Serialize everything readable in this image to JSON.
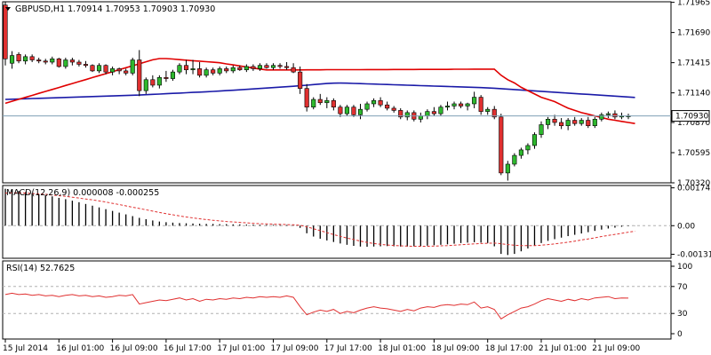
{
  "chart_data": [
    {
      "type": "candlestick",
      "title": "GBPUSD,H1  1.70914  1.70953  1.70903  1.70930",
      "symbol": "GBPUSD",
      "timeframe": "H1",
      "ohlc_header": {
        "open": "1.70914",
        "high": "1.70953",
        "low": "1.70903",
        "close": "1.70930"
      },
      "y_ticks": [
        "1.71965",
        "1.71690",
        "1.71415",
        "1.71140",
        "1.70870",
        "1.70595",
        "1.70320"
      ],
      "ylim": [
        1.7032,
        1.7197
      ],
      "current_price": 1.7093,
      "current_price_label": "1.70930",
      "colors": {
        "up": "#2eb82e",
        "down": "#e03030",
        "wick": "#000000",
        "ma_fast": "#e00000",
        "ma_slow": "#1a1aa8",
        "price_line": "#7f9fb5"
      },
      "candles": [
        [
          1.7194,
          1.7197,
          1.7139,
          1.7145
        ],
        [
          1.7141,
          1.7152,
          1.7136,
          1.7148
        ],
        [
          1.7149,
          1.7151,
          1.7141,
          1.7143
        ],
        [
          1.7143,
          1.7149,
          1.714,
          1.7147
        ],
        [
          1.7147,
          1.7149,
          1.7142,
          1.7144
        ],
        [
          1.7144,
          1.7146,
          1.7141,
          1.7143
        ],
        [
          1.7143,
          1.7145,
          1.714,
          1.7142
        ],
        [
          1.7142,
          1.7147,
          1.714,
          1.7145
        ],
        [
          1.7145,
          1.7146,
          1.7137,
          1.7138
        ],
        [
          1.7138,
          1.7146,
          1.7136,
          1.7144
        ],
        [
          1.7144,
          1.7146,
          1.7139,
          1.7142
        ],
        [
          1.7142,
          1.7144,
          1.7138,
          1.714
        ],
        [
          1.714,
          1.7143,
          1.7137,
          1.7139
        ],
        [
          1.7139,
          1.714,
          1.7133,
          1.7134
        ],
        [
          1.7134,
          1.7141,
          1.7132,
          1.7139
        ],
        [
          1.7139,
          1.714,
          1.7131,
          1.7133
        ],
        [
          1.7133,
          1.7138,
          1.713,
          1.7136
        ],
        [
          1.7136,
          1.7137,
          1.7131,
          1.7134
        ],
        [
          1.7134,
          1.7136,
          1.713,
          1.7132
        ],
        [
          1.7132,
          1.7146,
          1.713,
          1.7144
        ],
        [
          1.7144,
          1.7153,
          1.7111,
          1.7116
        ],
        [
          1.7116,
          1.7128,
          1.7113,
          1.7126
        ],
        [
          1.7126,
          1.713,
          1.7119,
          1.7121
        ],
        [
          1.7121,
          1.713,
          1.7118,
          1.7128
        ],
        [
          1.7128,
          1.7134,
          1.7124,
          1.7127
        ],
        [
          1.7127,
          1.7135,
          1.7125,
          1.7133
        ],
        [
          1.7133,
          1.7141,
          1.7131,
          1.7139
        ],
        [
          1.7139,
          1.7144,
          1.7131,
          1.7135
        ],
        [
          1.7135,
          1.7144,
          1.7131,
          1.7136
        ],
        [
          1.7136,
          1.7142,
          1.7128,
          1.713
        ],
        [
          1.713,
          1.7137,
          1.7128,
          1.7135
        ],
        [
          1.7135,
          1.7137,
          1.713,
          1.7132
        ],
        [
          1.7132,
          1.7138,
          1.713,
          1.7136
        ],
        [
          1.7136,
          1.7138,
          1.7132,
          1.7134
        ],
        [
          1.7134,
          1.7139,
          1.7132,
          1.7137
        ],
        [
          1.7137,
          1.7139,
          1.7134,
          1.7135
        ],
        [
          1.7135,
          1.714,
          1.7133,
          1.7138
        ],
        [
          1.7138,
          1.714,
          1.7134,
          1.7136
        ],
        [
          1.7136,
          1.7141,
          1.7134,
          1.7139
        ],
        [
          1.7139,
          1.7141,
          1.7136,
          1.7137
        ],
        [
          1.7137,
          1.7141,
          1.7135,
          1.7139
        ],
        [
          1.7139,
          1.7141,
          1.7136,
          1.7138
        ],
        [
          1.7138,
          1.7142,
          1.7135,
          1.7137
        ],
        [
          1.7137,
          1.7141,
          1.7132,
          1.7133
        ],
        [
          1.7133,
          1.7138,
          1.7113,
          1.7118
        ],
        [
          1.7118,
          1.7122,
          1.7097,
          1.7101
        ],
        [
          1.7101,
          1.711,
          1.7099,
          1.7108
        ],
        [
          1.7108,
          1.7113,
          1.7103,
          1.7105
        ],
        [
          1.7105,
          1.711,
          1.71,
          1.7107
        ],
        [
          1.7107,
          1.7109,
          1.7098,
          1.7101
        ],
        [
          1.7101,
          1.7103,
          1.7092,
          1.7095
        ],
        [
          1.7095,
          1.7103,
          1.7093,
          1.7101
        ],
        [
          1.7101,
          1.7103,
          1.7092,
          1.7094
        ],
        [
          1.7094,
          1.7104,
          1.709,
          1.7099
        ],
        [
          1.7099,
          1.7106,
          1.7097,
          1.7104
        ],
        [
          1.7104,
          1.7109,
          1.7101,
          1.7107
        ],
        [
          1.7107,
          1.711,
          1.7101,
          1.7103
        ],
        [
          1.7103,
          1.7106,
          1.7098,
          1.71
        ],
        [
          1.71,
          1.7102,
          1.7096,
          1.7098
        ],
        [
          1.7098,
          1.71,
          1.709,
          1.7092
        ],
        [
          1.7092,
          1.7098,
          1.7089,
          1.7096
        ],
        [
          1.7096,
          1.7098,
          1.7088,
          1.709
        ],
        [
          1.709,
          1.7096,
          1.7087,
          1.7093
        ],
        [
          1.7093,
          1.7099,
          1.709,
          1.7097
        ],
        [
          1.7097,
          1.7101,
          1.7093,
          1.7095
        ],
        [
          1.7095,
          1.7103,
          1.7093,
          1.7101
        ],
        [
          1.7101,
          1.7106,
          1.7098,
          1.7102
        ],
        [
          1.7102,
          1.7106,
          1.7099,
          1.7104
        ],
        [
          1.7104,
          1.7106,
          1.71,
          1.7102
        ],
        [
          1.7102,
          1.7105,
          1.7098,
          1.7104
        ],
        [
          1.7104,
          1.7115,
          1.71,
          1.711
        ],
        [
          1.711,
          1.7112,
          1.7094,
          1.7097
        ],
        [
          1.7097,
          1.7101,
          1.7094,
          1.7099
        ],
        [
          1.7099,
          1.7102,
          1.709,
          1.7092
        ],
        [
          1.7092,
          1.7095,
          1.7039,
          1.7041
        ],
        [
          1.7041,
          1.7052,
          1.7034,
          1.7049
        ],
        [
          1.7049,
          1.7059,
          1.7047,
          1.7057
        ],
        [
          1.7057,
          1.7064,
          1.7054,
          1.7062
        ],
        [
          1.7062,
          1.7068,
          1.7058,
          1.7066
        ],
        [
          1.7066,
          1.7078,
          1.7063,
          1.7076
        ],
        [
          1.7076,
          1.7088,
          1.7073,
          1.7085
        ],
        [
          1.7085,
          1.7092,
          1.7081,
          1.709
        ],
        [
          1.709,
          1.7094,
          1.7084,
          1.7087
        ],
        [
          1.7087,
          1.7091,
          1.7081,
          1.7084
        ],
        [
          1.7084,
          1.7091,
          1.708,
          1.7089
        ],
        [
          1.7089,
          1.7092,
          1.7084,
          1.7086
        ],
        [
          1.7086,
          1.7091,
          1.7084,
          1.7089
        ],
        [
          1.7089,
          1.7092,
          1.7082,
          1.7084
        ],
        [
          1.7084,
          1.7092,
          1.7082,
          1.709
        ],
        [
          1.709,
          1.7096,
          1.7088,
          1.7094
        ],
        [
          1.7094,
          1.7097,
          1.7091,
          1.7095
        ],
        [
          1.7095,
          1.7098,
          1.709,
          1.7092
        ],
        [
          1.7092,
          1.7096,
          1.709,
          1.7093
        ],
        [
          1.7093,
          1.7095,
          1.709,
          1.7093
        ]
      ],
      "ma_fast": [
        1.71045,
        1.71063,
        1.71081,
        1.71099,
        1.71117,
        1.71135,
        1.71153,
        1.71171,
        1.71189,
        1.71207,
        1.71225,
        1.71243,
        1.71261,
        1.71279,
        1.71297,
        1.71315,
        1.71333,
        1.71351,
        1.71369,
        1.71387,
        1.71405,
        1.71423,
        1.71441,
        1.71452,
        1.71452,
        1.71448,
        1.71443,
        1.71438,
        1.71433,
        1.71429,
        1.71424,
        1.71419,
        1.71414,
        1.71404,
        1.71395,
        1.71385,
        1.71376,
        1.71366,
        1.71357,
        1.71349,
        1.71349,
        1.71349,
        1.71349,
        1.71349,
        1.71349,
        1.7135,
        1.7135,
        1.7135,
        1.71351,
        1.71351,
        1.71351,
        1.71351,
        1.71351,
        1.71351,
        1.71352,
        1.71352,
        1.71352,
        1.71352,
        1.71353,
        1.71353,
        1.71353,
        1.71353,
        1.71354,
        1.71354,
        1.71354,
        1.71354,
        1.71354,
        1.71355,
        1.71355,
        1.71355,
        1.71356,
        1.71356,
        1.71356,
        1.71356,
        1.713,
        1.7126,
        1.7123,
        1.7119,
        1.7116,
        1.7113,
        1.711,
        1.7108,
        1.7106,
        1.7103,
        1.71,
        1.7098,
        1.7096,
        1.70945,
        1.7093,
        1.70915,
        1.709,
        1.7089,
        1.7088,
        1.7087,
        1.7086
      ],
      "ma_slow": [
        1.7108,
        1.71082,
        1.71084,
        1.71086,
        1.71088,
        1.7109,
        1.71092,
        1.71094,
        1.71096,
        1.71098,
        1.711,
        1.71102,
        1.71104,
        1.71106,
        1.71108,
        1.7111,
        1.71112,
        1.71114,
        1.71116,
        1.71118,
        1.7112,
        1.71123,
        1.71126,
        1.71129,
        1.71132,
        1.71135,
        1.71138,
        1.71141,
        1.71144,
        1.71147,
        1.7115,
        1.71153,
        1.71156,
        1.7116,
        1.71164,
        1.71168,
        1.71172,
        1.71176,
        1.7118,
        1.71184,
        1.71188,
        1.71192,
        1.71196,
        1.712,
        1.71205,
        1.7121,
        1.71215,
        1.7122,
        1.71225,
        1.71228,
        1.71229,
        1.71228,
        1.71226,
        1.71224,
        1.71222,
        1.7122,
        1.71218,
        1.71216,
        1.71214,
        1.71212,
        1.7121,
        1.71208,
        1.71206,
        1.71204,
        1.71202,
        1.712,
        1.71198,
        1.71196,
        1.71194,
        1.71192,
        1.7119,
        1.71188,
        1.71185,
        1.71182,
        1.71178,
        1.71174,
        1.7117,
        1.71166,
        1.71162,
        1.71158,
        1.71154,
        1.7115,
        1.71146,
        1.71142,
        1.71138,
        1.71134,
        1.7113,
        1.71126,
        1.71122,
        1.71118,
        1.71114,
        1.7111,
        1.71106,
        1.71102,
        1.71098
      ]
    },
    {
      "type": "histogram",
      "title": "MACD(12,26,9) 0.000008 -0.000255",
      "y_ticks": [
        "0.001742",
        "0.00",
        "-0.001318"
      ],
      "ylim": [
        -0.0015,
        0.00185
      ],
      "colors": {
        "bars": "#000000",
        "signal": "#e03030",
        "zero": "#b0b0b0"
      },
      "macd": [
        0.0017,
        0.00165,
        0.0016,
        0.00155,
        0.0015,
        0.00145,
        0.0014,
        0.00135,
        0.00128,
        0.00122,
        0.00115,
        0.00108,
        0.001,
        0.00092,
        0.00084,
        0.00076,
        0.00068,
        0.0006,
        0.00052,
        0.00044,
        0.00036,
        0.0003,
        0.00024,
        0.00019,
        0.00016,
        0.00014,
        0.00012,
        0.00011,
        0.0001,
        9e-05,
        8e-05,
        8e-05,
        7e-05,
        7e-05,
        6e-05,
        6e-05,
        5e-05,
        5e-05,
        4e-05,
        4e-05,
        4e-05,
        3e-05,
        3e-05,
        2e-05,
        -0.0001,
        -0.00035,
        -0.0005,
        -0.0006,
        -0.00068,
        -0.00075,
        -0.00082,
        -0.00088,
        -0.00093,
        -0.00096,
        -0.00097,
        -0.00096,
        -0.00095,
        -0.00094,
        -0.00095,
        -0.00096,
        -0.00096,
        -0.00095,
        -0.00094,
        -0.00092,
        -0.0009,
        -0.00088,
        -0.00086,
        -0.00083,
        -0.0008,
        -0.00078,
        -0.00076,
        -0.00078,
        -0.0008,
        -0.00095,
        -0.0013,
        -0.00135,
        -0.0013,
        -0.00118,
        -0.00105,
        -0.00092,
        -0.0008,
        -0.0007,
        -0.00062,
        -0.00055,
        -0.00048,
        -0.00042,
        -0.00036,
        -0.0003,
        -0.00024,
        -0.00018,
        -0.00013,
        -9e-05,
        -5e-05,
        -2e-05,
        8e-06
      ],
      "signal": [
        0.0015,
        0.00151,
        0.00151,
        0.0015,
        0.00148,
        0.00146,
        0.00144,
        0.00141,
        0.00138,
        0.00135,
        0.00131,
        0.00127,
        0.00123,
        0.00119,
        0.00114,
        0.00109,
        0.00103,
        0.00097,
        0.00091,
        0.00085,
        0.00079,
        0.00073,
        0.00067,
        0.00061,
        0.00055,
        0.0005,
        0.00045,
        0.0004,
        0.00036,
        0.00032,
        0.00028,
        0.00025,
        0.00022,
        0.00019,
        0.00017,
        0.00015,
        0.00013,
        0.00011,
        9e-05,
        8e-05,
        7e-05,
        6e-05,
        5e-05,
        4e-05,
        2e-05,
        -5e-05,
        -0.00014,
        -0.00023,
        -0.00032,
        -0.00041,
        -0.00049,
        -0.00057,
        -0.00064,
        -0.00071,
        -0.00077,
        -0.00082,
        -0.00086,
        -0.00089,
        -0.00091,
        -0.00093,
        -0.00094,
        -0.00095,
        -0.00095,
        -0.00095,
        -0.00094,
        -0.00093,
        -0.00092,
        -0.0009,
        -0.00088,
        -0.00086,
        -0.00084,
        -0.00082,
        -0.00081,
        -0.0008,
        -0.00083,
        -0.00087,
        -0.0009,
        -0.00092,
        -0.00092,
        -0.00092,
        -0.0009,
        -0.00087,
        -0.00084,
        -0.0008,
        -0.00076,
        -0.00071,
        -0.00066,
        -0.00061,
        -0.00056,
        -0.0005,
        -0.00045,
        -0.0004,
        -0.00035,
        -0.0003,
        -0.000255
      ]
    },
    {
      "type": "line",
      "title": "RSI(14) 52.7625",
      "y_ticks": [
        "100",
        "70",
        "30",
        "0"
      ],
      "ylim": [
        0,
        100
      ],
      "levels": [
        70,
        30
      ],
      "colors": {
        "line": "#e03030",
        "levels": "#b0b0b0"
      },
      "values": [
        58,
        60,
        58,
        59,
        57,
        58,
        56,
        57,
        55,
        57,
        58,
        56,
        57,
        55,
        56,
        54,
        55,
        57,
        56,
        58,
        44,
        46,
        48,
        50,
        49,
        51,
        53,
        50,
        52,
        48,
        51,
        50,
        52,
        51,
        53,
        52,
        54,
        53,
        55,
        54,
        55,
        54,
        56,
        54,
        40,
        28,
        32,
        35,
        33,
        36,
        30,
        33,
        31,
        35,
        38,
        40,
        38,
        37,
        35,
        33,
        36,
        34,
        38,
        40,
        39,
        42,
        43,
        42,
        44,
        43,
        47,
        38,
        40,
        36,
        22,
        28,
        33,
        38,
        40,
        44,
        49,
        52,
        50,
        48,
        51,
        49,
        52,
        50,
        53,
        54,
        55,
        52,
        53,
        52.8
      ],
      "last_label": "52.7625"
    }
  ],
  "x_axis": {
    "labels": [
      "15 Jul 2014",
      "16 Jul 01:00",
      "16 Jul 09:00",
      "16 Jul 17:00",
      "17 Jul 01:00",
      "17 Jul 09:00",
      "17 Jul 17:00",
      "18 Jul 01:00",
      "18 Jul 09:00",
      "18 Jul 17:00",
      "21 Jul 01:00",
      "21 Jul 09:00"
    ],
    "label_bar_index": [
      0,
      8,
      16,
      24,
      32,
      40,
      48,
      56,
      64,
      72,
      80,
      88
    ]
  },
  "ui": {
    "collapse_icon": "triangle-down-icon"
  }
}
